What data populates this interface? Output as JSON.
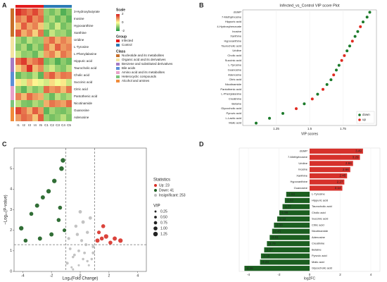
{
  "chart_data": [
    {
      "type": "heatmap",
      "panel": "A",
      "rows": [
        "3-Hydroxybutyrate",
        "Inosine",
        "Hypoxanthine",
        "Xanthine",
        "Uridine",
        "L-Tyrosine",
        "L-Phenylalanine",
        "Hippuric acid",
        "Taurocholic acid",
        "Cholic acid",
        "Succinic acid",
        "Citric acid",
        "Pantothenic acid",
        "Nicotinamide",
        "Guanosine",
        "Adenosine"
      ],
      "columns": [
        "I1",
        "I2",
        "I3",
        "I4",
        "I5",
        "C1",
        "C2",
        "C3",
        "C4",
        "C5"
      ],
      "row_colors": [
        "#c8702a",
        "#c8702a",
        "#c8702a",
        "#c8702a",
        "#f2e3a0",
        "#f2e3a0",
        "#f2e3a0",
        "#a67bc5",
        "#a67bc5",
        "#5b8fd6",
        "#5b8fd6",
        "#e8a0c8",
        "#e8a0c8",
        "#7cc47c",
        "#f08c3a",
        "#f08c3a"
      ],
      "values": [
        [
          1.8,
          1.5,
          1.2,
          1.6,
          1.1,
          -0.9,
          -1.2,
          -0.8,
          -1.5,
          -1.1
        ],
        [
          1.2,
          0.9,
          1.6,
          1.0,
          1.3,
          -1.0,
          -0.7,
          -1.3,
          -0.9,
          -1.4
        ],
        [
          0.6,
          1.4,
          0.8,
          1.1,
          0.5,
          -0.6,
          -1.1,
          -0.4,
          -1.2,
          -0.9
        ],
        [
          1.5,
          0.7,
          1.1,
          0.4,
          1.2,
          -1.3,
          -0.5,
          -0.9,
          -0.8,
          -1.2
        ],
        [
          -0.8,
          -1.2,
          -0.6,
          -1.0,
          -0.9,
          0.9,
          1.3,
          0.7,
          1.1,
          0.8
        ],
        [
          -1.1,
          -0.7,
          -1.4,
          -0.8,
          -1.2,
          1.2,
          0.6,
          1.4,
          0.9,
          1.1
        ],
        [
          -0.5,
          -1.0,
          -0.9,
          -1.3,
          -0.6,
          0.8,
          1.1,
          0.5,
          1.2,
          0.9
        ],
        [
          1.3,
          1.7,
          0.9,
          1.2,
          1.5,
          -1.2,
          -0.9,
          -1.5,
          -1.0,
          -1.3
        ],
        [
          0.4,
          0.9,
          1.8,
          0.6,
          1.0,
          -0.7,
          -0.4,
          -0.9,
          -1.1,
          -0.6
        ],
        [
          -1.3,
          -0.9,
          -1.1,
          -0.6,
          -1.4,
          1.0,
          1.4,
          0.8,
          1.2,
          1.1
        ],
        [
          0.2,
          -0.3,
          0.5,
          0.1,
          -0.2,
          -0.4,
          0.3,
          -0.1,
          0.2,
          -0.5
        ],
        [
          -0.9,
          -1.4,
          -0.7,
          -1.1,
          -0.8,
          1.3,
          0.9,
          1.1,
          0.6,
          1.2
        ],
        [
          1.1,
          0.6,
          1.3,
          0.9,
          0.7,
          -0.8,
          -1.3,
          -0.6,
          -1.0,
          -0.7
        ],
        [
          -0.6,
          -1.1,
          -1.2,
          -0.7,
          -1.0,
          0.7,
          1.2,
          1.0,
          0.8,
          1.3
        ],
        [
          1.6,
          1.2,
          0.7,
          1.4,
          0.9,
          -1.4,
          -0.8,
          -1.1,
          -1.2,
          -0.9
        ],
        [
          0.9,
          1.3,
          1.1,
          0.5,
          1.4,
          -0.9,
          -1.2,
          -1.0,
          -0.6,
          -1.1
        ]
      ],
      "scale_title": "Scale",
      "scale_ticks": [
        2,
        0,
        -2
      ],
      "group_title": "Group",
      "groups": [
        {
          "name": "Infected",
          "color": "#e31a1c"
        },
        {
          "name": "Control",
          "color": "#2c7bb6"
        }
      ],
      "class_title": "Class",
      "classes": [
        {
          "name": "Nucleotide and its metabolites",
          "color": "#c8702a"
        },
        {
          "name": "Organic acid and its derivatives",
          "color": "#f2e3a0"
        },
        {
          "name": "Benzene and substituted derivatives",
          "color": "#a67bc5"
        },
        {
          "name": "Bile acids",
          "color": "#5b8fd6"
        },
        {
          "name": "Amino acid and its metabolites",
          "color": "#e8a0c8"
        },
        {
          "name": "Heterocyclic compounds",
          "color": "#7cc47c"
        },
        {
          "name": "Alcohol and amines",
          "color": "#f08c3a"
        }
      ]
    },
    {
      "type": "dot",
      "panel": "B",
      "title": "Infected_vs_Control VIP score Plot",
      "xlabel": "VIP scores",
      "categories": [
        "dGMP",
        "7-Methylinosine",
        "Hippuric acid",
        "4-Hydroxybenzoate",
        "Inosine",
        "Xanthine",
        "Hypoxanthine",
        "Taurocholic acid",
        "Uridine",
        "Cholic acid",
        "Succinic acid",
        "L-Tyrosine",
        "Guanosine",
        "Adenosine",
        "Citric acid",
        "Nicotinamide",
        "Pantothenic acid",
        "L-Phenylalanine",
        "Creatinine",
        "Betaine",
        "Glycocholic acid",
        "Pyruvic acid",
        "L-Lactic acid",
        "Malic acid"
      ],
      "series": [
        {
          "name": "down",
          "color": "#1b7a2a",
          "values": [
            1.95,
            1.93,
            1.9,
            null,
            1.86,
            1.84,
            null,
            1.8,
            1.78,
            null,
            null,
            1.72,
            1.7,
            null,
            1.66,
            1.63,
            null,
            1.56,
            null,
            1.46,
            null,
            1.3,
            1.2,
            1.1
          ]
        },
        {
          "name": "up",
          "color": "#e02a20",
          "values": [
            null,
            null,
            null,
            1.88,
            null,
            null,
            1.82,
            null,
            null,
            1.76,
            1.74,
            null,
            null,
            1.68,
            null,
            null,
            1.6,
            null,
            1.52,
            null,
            1.4,
            null,
            null,
            null
          ]
        }
      ],
      "xlim": [
        1,
        2
      ],
      "xticks": [
        1.25,
        1.5,
        1.75
      ]
    },
    {
      "type": "scatter",
      "panel": "C",
      "xlabel": "Log₂(Fold Change)",
      "ylabel": "−Log₁₀(P-value)",
      "legend_title": "Statistics",
      "size_title": "VIP",
      "series": [
        {
          "name": "Up: 23",
          "color": "#d73027",
          "x": [
            1.2,
            1.5,
            1.8,
            2.1,
            2.4,
            1.3,
            2.8,
            1.6
          ],
          "values": [
            1.5,
            1.6,
            1.7,
            1.4,
            1.6,
            1.9,
            1.5,
            2.2
          ],
          "sizes": [
            1.1,
            1,
            1.2,
            1,
            1.1,
            0.9,
            1.2,
            1
          ]
        },
        {
          "name": "Down: 41",
          "color": "#1b5e20",
          "x": [
            -1.3,
            -1.8,
            -2.2,
            -2.6,
            -3,
            -3.4,
            -4.1,
            -1.5,
            -2,
            -1.1,
            -1.4,
            -2.8,
            -3.8,
            -1.2
          ],
          "values": [
            5,
            4.4,
            3.9,
            3.6,
            3.2,
            2.8,
            2.1,
            2.5,
            1.8,
            2,
            3.1,
            1.6,
            1.5,
            5.4
          ],
          "sizes": [
            1.25,
            1.2,
            1.2,
            1.1,
            1.1,
            1,
            1.2,
            1,
            1.1,
            0.9,
            1,
            1.1,
            1,
            1.25
          ]
        },
        {
          "name": "Insignificant: 253",
          "color": "#bdbdbd",
          "x": [
            -0.9,
            -0.7,
            -0.5,
            -0.3,
            -0.1,
            0.1,
            0.3,
            0.5,
            0.7,
            0.9,
            -0.6,
            -0.2,
            0.2,
            0.6,
            -0.8,
            -0.4,
            0,
            0.4,
            0.8,
            -0.5,
            0.5,
            -0.1,
            0.2,
            0.9
          ],
          "values": [
            0.4,
            1.1,
            0.7,
            2.2,
            0.3,
            1.5,
            0.9,
            0.5,
            2.6,
            1.2,
            0.2,
            1.8,
            0.6,
            0.3,
            1.6,
            0.8,
            2.9,
            1.3,
            0.6,
            0.1,
            1.9,
            1,
            2.4,
            0.9
          ],
          "sizes": [
            0.6,
            0.5,
            0.4,
            0.7,
            0.3,
            0.6,
            0.5,
            0.4,
            0.8,
            0.6,
            0.3,
            0.7,
            0.4,
            0.3,
            0.6,
            0.5,
            0.8,
            0.6,
            0.4,
            0.3,
            0.7,
            0.5,
            0.8,
            0.6
          ]
        }
      ],
      "size_ticks": [
        0.25,
        {
          "value": 0.5,
          "label": "0.50"
        },
        0.75,
        {
          "value": 1,
          "label": "1.00"
        },
        1.25
      ],
      "thresholds": {
        "x": [
          -1,
          1
        ],
        "y": 1.3
      },
      "xlim": [
        -4.6,
        4.6
      ],
      "xticks": [
        -4,
        -2,
        0,
        2,
        4
      ],
      "ylim": [
        0,
        6
      ],
      "yticks": [
        0,
        1,
        2,
        3,
        4,
        5
      ]
    },
    {
      "type": "hbar",
      "panel": "D",
      "xlabel": "log2FC",
      "categories": [
        "dGMP",
        "7-Methylinosine",
        "Uridine",
        "Inosine",
        "Xanthine",
        "Hypoxanthine",
        "Guanosine",
        "L-Tyrosine",
        "Hippuric acid",
        "Taurocholic acid",
        "Cholic acid",
        "Succinic acid",
        "Citric acid",
        "Nicotinamide",
        "Adenosine",
        "Creatinine",
        "Betaine",
        "Pyruvic acid",
        "Malic acid",
        "Glycocholic acid"
      ],
      "values": [
        3.49,
        3.29,
        2.84,
        2.66,
        2.45,
        2.27,
        2.14,
        -1.53,
        -1.62,
        -1.77,
        -1.98,
        -2.12,
        -2.33,
        -2.45,
        -2.61,
        -2.79,
        -2.97,
        -3.18,
        -3.24,
        -4.26
      ],
      "colors": {
        "up": "#d6312b",
        "down": "#1b5e20"
      },
      "xlim": [
        -4.6,
        4.6
      ],
      "xticks": [
        -4,
        -2,
        0,
        2,
        4
      ]
    }
  ]
}
